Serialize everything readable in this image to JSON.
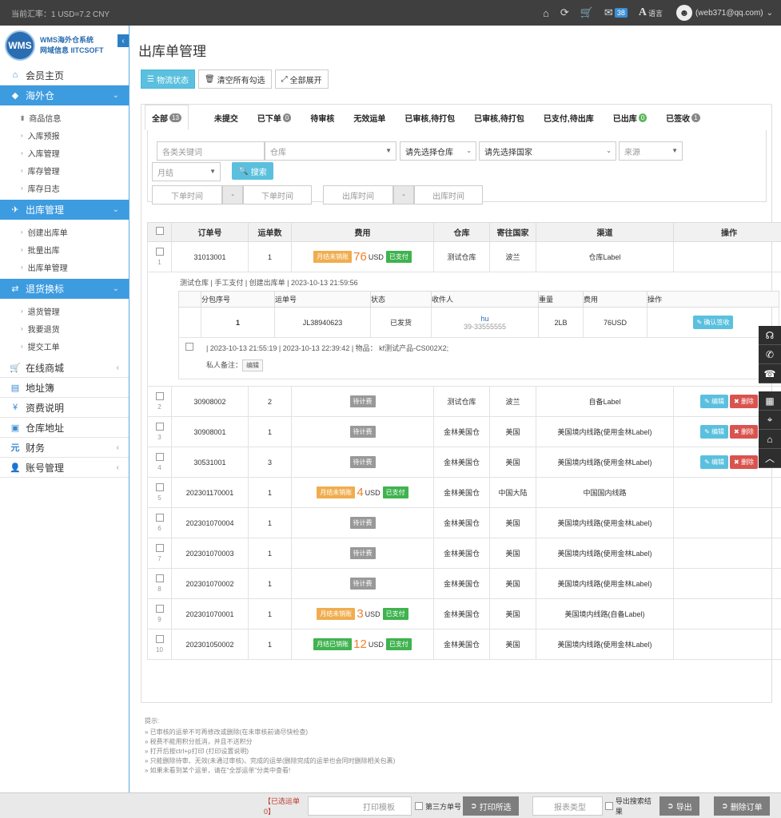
{
  "topbar": {
    "rate": "当前汇率：1 USD=7.2 CNY",
    "msg_count": "38",
    "lang": "语言",
    "user": "(web371@qq.com)"
  },
  "logo": {
    "mark": "WMS",
    "line1": "WMS海外仓系统",
    "line2": "网域信息 IITCSOFT"
  },
  "sidebar": {
    "home": "会员主页",
    "overseas": "海外仓",
    "overseas_items": [
      "商品信息",
      "入库预报",
      "入库管理",
      "库存管理",
      "库存日志"
    ],
    "outbound": "出库管理",
    "outbound_items": [
      "创建出库单",
      "批量出库",
      "出库单管理"
    ],
    "returns": "退货换标",
    "returns_items": [
      "退货管理",
      "我要退货",
      "提交工单"
    ],
    "others": [
      "在线商城",
      "地址簿",
      "资费说明",
      "仓库地址",
      "财务",
      "账号管理"
    ]
  },
  "page_title": "出库单管理",
  "toolbar": {
    "status": "物流状态",
    "clear": "清空所有勾选",
    "expand": "全部展开"
  },
  "tabs": [
    {
      "label": "全部",
      "count": "13"
    },
    {
      "label": "未提交",
      "count": ""
    },
    {
      "label": "已下单",
      "count": "0"
    },
    {
      "label": "待审核",
      "count": ""
    },
    {
      "label": "无效运单",
      "count": ""
    },
    {
      "label": "已审核,待打包",
      "count": ""
    },
    {
      "label": "已审核,待打包",
      "count": ""
    },
    {
      "label": "已支付,待出库",
      "count": ""
    },
    {
      "label": "已出库",
      "count": "0"
    },
    {
      "label": "已签收",
      "count": "1"
    }
  ],
  "filter": {
    "keyword": "各类关键词",
    "warehouse": "仓库",
    "select_wh": "请先选择仓库",
    "select_country": "请先选择国家",
    "source": "来源",
    "settle": "月结",
    "search": "搜索",
    "order_time": "下单时间",
    "out_time": "出库时间",
    "dash": "-"
  },
  "table": {
    "headers": [
      "订单号",
      "运单数",
      "费用",
      "仓库",
      "寄往国家",
      "渠道",
      "操作"
    ],
    "unit": "USD",
    "pending": "待计费",
    "edit": "编辑",
    "delete": "删除",
    "rows": [
      {
        "idx": "1",
        "no": "31013001",
        "count": "1",
        "fee_tag": "月结未销账",
        "fee": "76",
        "paid": "已支付",
        "wh": "测试仓库",
        "country": "波兰",
        "channel": "仓库Label",
        "ops": false
      },
      {
        "idx": "2",
        "no": "30908002",
        "count": "2",
        "fee_tag": "",
        "fee": "",
        "paid": "",
        "wh": "测试仓库",
        "country": "波兰",
        "channel": "自备Label",
        "ops": true
      },
      {
        "idx": "3",
        "no": "30908001",
        "count": "1",
        "fee_tag": "",
        "fee": "",
        "paid": "",
        "wh": "金林美国仓",
        "country": "美国",
        "channel": "美国境内线路(使用金林Label)",
        "ops": true
      },
      {
        "idx": "4",
        "no": "30531001",
        "count": "3",
        "fee_tag": "",
        "fee": "",
        "paid": "",
        "wh": "金林美国仓",
        "country": "美国",
        "channel": "美国境内线路(使用金林Label)",
        "ops": true
      },
      {
        "idx": "5",
        "no": "202301170001",
        "count": "1",
        "fee_tag": "月结未销账",
        "fee": "4",
        "paid": "已支付",
        "wh": "金林美国仓",
        "country": "中国大陆",
        "channel": "中国国内线路",
        "ops": false
      },
      {
        "idx": "6",
        "no": "202301070004",
        "count": "1",
        "fee_tag": "",
        "fee": "",
        "paid": "",
        "wh": "金林美国仓",
        "country": "美国",
        "channel": "美国境内线路(使用金林Label)",
        "ops": false
      },
      {
        "idx": "7",
        "no": "202301070003",
        "count": "1",
        "fee_tag": "",
        "fee": "",
        "paid": "",
        "wh": "金林美国仓",
        "country": "美国",
        "channel": "美国境内线路(使用金林Label)",
        "ops": false
      },
      {
        "idx": "8",
        "no": "202301070002",
        "count": "1",
        "fee_tag": "",
        "fee": "",
        "paid": "",
        "wh": "金林美国仓",
        "country": "美国",
        "channel": "美国境内线路(使用金林Label)",
        "ops": false
      },
      {
        "idx": "9",
        "no": "202301070001",
        "count": "1",
        "fee_tag": "月结未销账",
        "fee": "3",
        "paid": "已支付",
        "wh": "金林美国仓",
        "country": "美国",
        "channel": "美国境内线路(自备Label)",
        "ops": false
      },
      {
        "idx": "10",
        "no": "202301050002",
        "count": "1",
        "fee_tag": "月结已销账",
        "fee": "12",
        "paid": "已支付",
        "wh": "金林美国仓",
        "country": "美国",
        "channel": "美国境内线路(使用金林Label)",
        "ops": false
      }
    ]
  },
  "detail": {
    "meta": "测试仓库 | 手工支付 | 创建出库单 | 2023-10-13 21:59:56",
    "headers": [
      "分包序号",
      "运单号",
      "状态",
      "收件人",
      "重量",
      "费用",
      "操作"
    ],
    "seq": "1",
    "waybill": "JL38940623",
    "status": "已发货",
    "recipient": "hu",
    "phone": "39-33555555",
    "weight": "2LB",
    "fee": "76USD",
    "confirm": "确认签收",
    "times": "| 2023-10-13 21:55:19 | 2023-10-13 22:39:42 | 物品： kf测试产品-CS002X2;",
    "private": "私人备注：",
    "edit": "编辑"
  },
  "tips": [
    "提示:",
    "» 已审核的运单不可再修改或删除(在未审核前请尽快检查)",
    "» 税费不能用积分抵消，并且不送积分",
    "» 打开后按ctrl+p打印 (打印设置说明)",
    "» 只能删除待审、无效(未通过审核)、完成的运单(删除完成的运单也会同时删除相关包裹)",
    "» 如果未看到某个运单，请在“全部运单”分类中查看!"
  ],
  "bottom": {
    "selected": "【已选运单0】",
    "print_tpl": "打印模板",
    "third": "第三方单号",
    "print": "打印所选",
    "report": "报表类型",
    "export_result": "导出搜索结果",
    "export": "导出",
    "delete": "删除订单"
  }
}
